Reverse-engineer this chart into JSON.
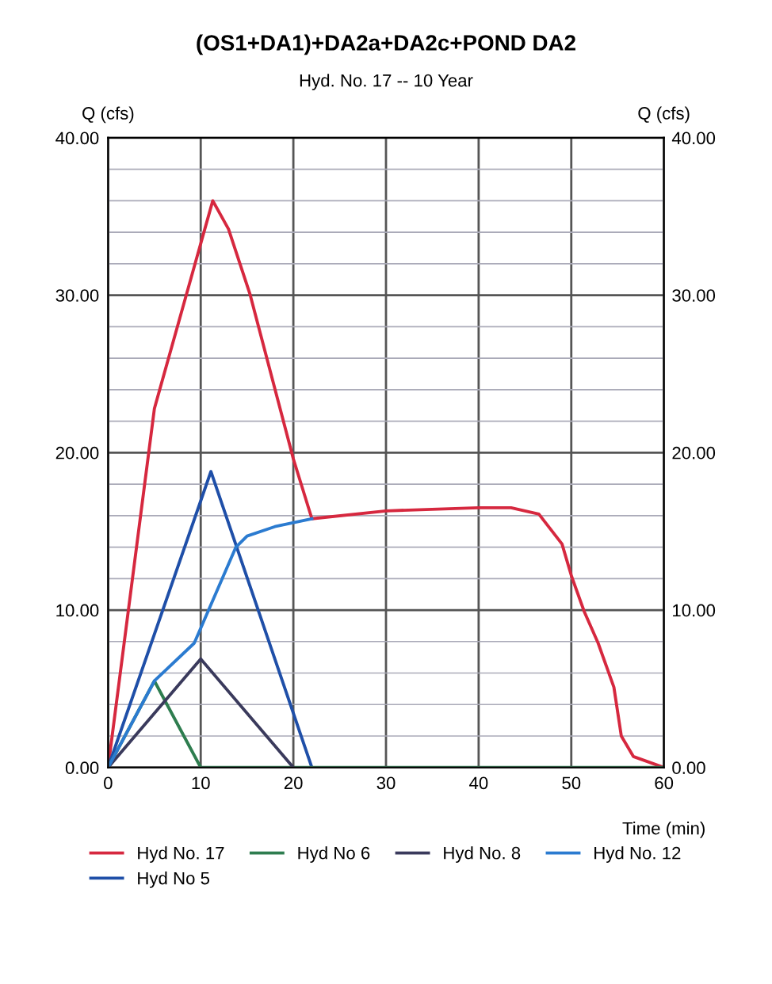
{
  "chart_data": {
    "type": "line",
    "title": "(OS1+DA1)+DA2a+DA2c+POND DA2",
    "subtitle": "Hyd. No. 17 -- 10 Year",
    "xlabel": "Time (min)",
    "ylabel": "Q (cfs)",
    "y2label": "Q (cfs)",
    "xlim": [
      0,
      60
    ],
    "xticks": [
      0,
      10,
      20,
      30,
      40,
      50,
      60
    ],
    "ylim": [
      0,
      40
    ],
    "yticks": [
      {
        "value": 0,
        "label": "0.00"
      },
      {
        "value": 10,
        "label": "10.00"
      },
      {
        "value": 20,
        "label": "20.00"
      },
      {
        "value": 30,
        "label": "30.00"
      },
      {
        "value": 40,
        "label": "40.00"
      }
    ],
    "y2lim": [
      0,
      40
    ],
    "y2ticks": [
      {
        "value": 0,
        "label": "0.00"
      },
      {
        "value": 10,
        "label": "10.00"
      },
      {
        "value": 20,
        "label": "20.00"
      },
      {
        "value": 30,
        "label": "30.00"
      },
      {
        "value": 40,
        "label": "40.00"
      }
    ],
    "grid": true,
    "legend": "bottom",
    "line_style": "solid",
    "series": [
      {
        "name": "Hyd No. 17",
        "color": "#d6283f",
        "x": [
          0,
          5,
          11.3,
          13,
          15.3,
          20,
          22,
          30,
          40,
          43.5,
          46.5,
          49,
          50,
          51.4,
          52.9,
          54.6,
          55.4,
          56.7,
          60
        ],
        "values": [
          0,
          22.8,
          36.0,
          34.2,
          30.1,
          19.6,
          15.8,
          16.3,
          16.5,
          16.5,
          16.1,
          14.2,
          12.2,
          9.9,
          7.9,
          5.1,
          2.0,
          0.7,
          0
        ]
      },
      {
        "name": "Hyd No 5",
        "color": "#1f4fa8",
        "x": [
          0,
          11.1,
          22
        ],
        "values": [
          0,
          18.8,
          0
        ]
      },
      {
        "name": "Hyd No 6",
        "color": "#2e7d4f",
        "x": [
          0,
          5,
          10,
          60
        ],
        "values": [
          0,
          5.5,
          0,
          0
        ]
      },
      {
        "name": "Hyd No. 8",
        "color": "#3a3a5c",
        "x": [
          0,
          10,
          20
        ],
        "values": [
          0,
          6.9,
          0
        ]
      },
      {
        "name": "Hyd No. 12",
        "color": "#2b7bd0",
        "x": [
          0,
          5,
          9.3,
          13.8,
          15,
          18,
          22
        ],
        "values": [
          0,
          5.5,
          7.9,
          14.0,
          14.7,
          15.3,
          15.8
        ]
      }
    ]
  }
}
